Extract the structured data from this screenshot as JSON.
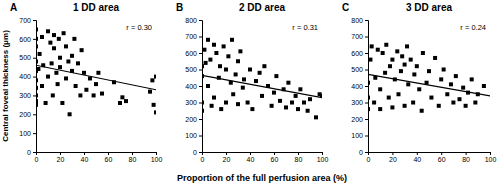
{
  "chart_data": [
    {
      "type": "scatter",
      "title": "1 DD area",
      "annotations": [
        "A",
        "r = 0.30"
      ],
      "ylabel": "Central foveal thickness (μm)",
      "xlim": [
        0,
        100
      ],
      "xticks": [
        0,
        20,
        40,
        60,
        80,
        100
      ],
      "ylim": [
        0,
        700
      ],
      "yticks": [
        0,
        100,
        200,
        300,
        400,
        500,
        600,
        700
      ],
      "grid": false,
      "series": [
        {
          "type": "scatter",
          "marker": "square",
          "color": "#000000",
          "x": [
            0,
            0,
            0,
            0,
            0,
            0,
            0,
            0,
            0,
            0,
            2,
            3,
            5,
            5,
            6,
            8,
            10,
            10,
            12,
            13,
            14,
            15,
            15,
            17,
            18,
            19,
            20,
            20,
            22,
            23,
            25,
            25,
            27,
            28,
            30,
            30,
            32,
            33,
            35,
            37,
            38,
            40,
            42,
            45,
            48,
            50,
            52,
            55,
            65,
            70,
            72,
            75,
            95,
            97,
            98,
            100,
            100
          ],
          "values": [
            650,
            600,
            560,
            480,
            430,
            380,
            340,
            300,
            270,
            250,
            440,
            520,
            610,
            350,
            460,
            260,
            640,
            400,
            580,
            470,
            300,
            620,
            550,
            420,
            360,
            600,
            500,
            450,
            260,
            630,
            390,
            560,
            480,
            200,
            510,
            430,
            600,
            350,
            470,
            300,
            540,
            420,
            330,
            390,
            300,
            360,
            420,
            310,
            370,
            260,
            290,
            270,
            320,
            380,
            250,
            210,
            400
          ]
        },
        {
          "type": "line",
          "line_style": "solid",
          "color": "#000000",
          "x": [
            0,
            100
          ],
          "values": [
            460,
            330
          ]
        }
      ]
    },
    {
      "type": "scatter",
      "title": "2 DD area",
      "annotations": [
        "B",
        "r = 0.31"
      ],
      "xlabel": "Proportion of the full perfusion area (%)",
      "xlim": [
        0,
        100
      ],
      "xticks": [
        0,
        20,
        40,
        60,
        80,
        100
      ],
      "ylim": [
        0,
        800
      ],
      "yticks": [
        0,
        100,
        200,
        300,
        400,
        500,
        600,
        700,
        800
      ],
      "grid": false,
      "series": [
        {
          "type": "scatter",
          "marker": "square",
          "color": "#000000",
          "x": [
            0,
            0,
            0,
            0,
            2,
            3,
            5,
            5,
            7,
            8,
            10,
            10,
            12,
            14,
            15,
            16,
            18,
            20,
            20,
            22,
            24,
            25,
            26,
            28,
            30,
            30,
            32,
            34,
            35,
            38,
            40,
            42,
            45,
            48,
            50,
            52,
            55,
            58,
            60,
            62,
            65,
            68,
            70,
            72,
            75,
            78,
            80,
            82,
            85,
            88,
            90,
            95,
            98,
            100
          ],
          "values": [
            520,
            460,
            300,
            250,
            620,
            540,
            680,
            400,
            560,
            280,
            650,
            330,
            600,
            450,
            520,
            260,
            640,
            300,
            500,
            580,
            420,
            680,
            350,
            470,
            550,
            290,
            610,
            390,
            440,
            300,
            500,
            260,
            430,
            480,
            340,
            520,
            400,
            280,
            360,
            460,
            310,
            380,
            270,
            420,
            300,
            340,
            260,
            380,
            300,
            250,
            320,
            210,
            350,
            340
          ]
        },
        {
          "type": "line",
          "line_style": "solid",
          "color": "#000000",
          "x": [
            0,
            100
          ],
          "values": [
            465,
            330
          ]
        }
      ]
    },
    {
      "type": "scatter",
      "title": "3 DD area",
      "annotations": [
        "C",
        "r = 0.24"
      ],
      "xlim": [
        0,
        100
      ],
      "xticks": [
        0,
        20,
        40,
        60,
        80,
        100
      ],
      "ylim": [
        0,
        800
      ],
      "yticks": [
        0,
        100,
        200,
        300,
        400,
        500,
        600,
        700,
        800
      ],
      "grid": false,
      "series": [
        {
          "type": "scatter",
          "marker": "square",
          "color": "#000000",
          "x": [
            0,
            0,
            0,
            2,
            3,
            5,
            6,
            8,
            10,
            10,
            12,
            14,
            15,
            17,
            18,
            20,
            20,
            22,
            24,
            25,
            27,
            28,
            30,
            30,
            32,
            33,
            35,
            37,
            38,
            40,
            42,
            44,
            45,
            48,
            50,
            52,
            55,
            58,
            60,
            62,
            65,
            68,
            70,
            72,
            75,
            78,
            80,
            82,
            85,
            88,
            90,
            95
          ],
          "values": [
            330,
            260,
            420,
            560,
            640,
            300,
            450,
            620,
            380,
            260,
            600,
            480,
            650,
            330,
            520,
            560,
            270,
            440,
            610,
            350,
            490,
            580,
            280,
            530,
            640,
            410,
            560,
            300,
            470,
            520,
            380,
            250,
            600,
            420,
            490,
            330,
            570,
            280,
            440,
            500,
            350,
            410,
            300,
            460,
            320,
            390,
            280,
            360,
            440,
            300,
            350,
            400
          ]
        },
        {
          "type": "line",
          "line_style": "solid",
          "color": "#000000",
          "x": [
            0,
            100
          ],
          "values": [
            470,
            340
          ]
        }
      ]
    }
  ]
}
